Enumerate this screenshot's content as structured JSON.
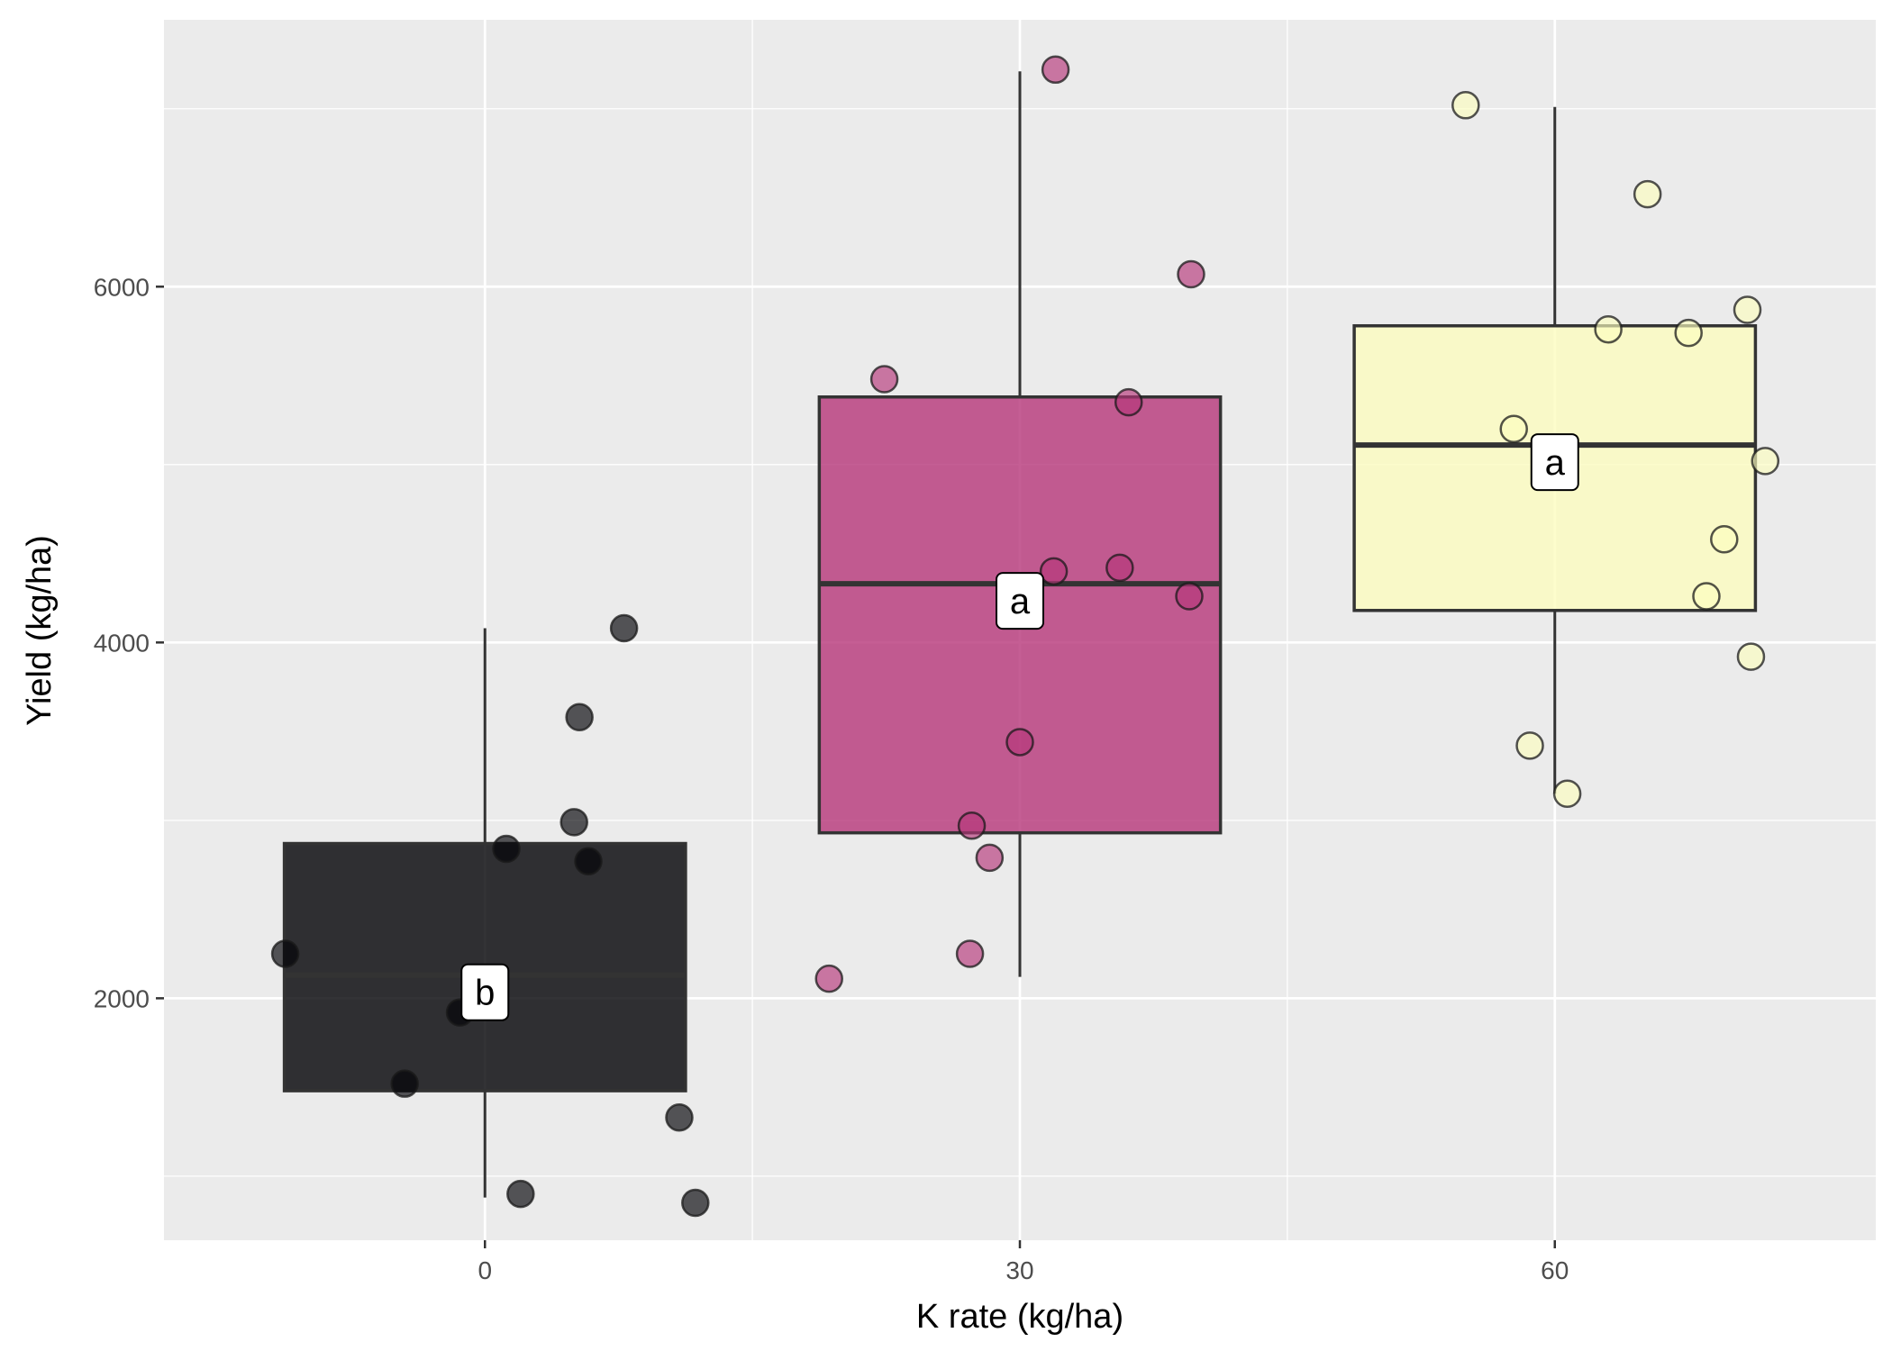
{
  "chart_data": {
    "type": "boxplot",
    "xlabel": "K rate (kg/ha)",
    "ylabel": "Yield (kg/ha)",
    "xlim": [
      -18,
      78
    ],
    "ylim": [
      640,
      7500
    ],
    "x_ticks": [
      0,
      30,
      60
    ],
    "y_ticks": [
      2000,
      4000,
      6000
    ],
    "grid": true,
    "legend": "none",
    "groups": [
      {
        "x": 0,
        "fill": "#000004",
        "letter": "b",
        "box": {
          "q1": 1480,
          "median": 2130,
          "q3": 2870,
          "whisker_low": 880,
          "whisker_high": 4080
        },
        "points": [
          {
            "x": -11.2,
            "y": 2250
          },
          {
            "x": -4.5,
            "y": 1520
          },
          {
            "x": -1.4,
            "y": 1920
          },
          {
            "x": 0.5,
            "y": 2010
          },
          {
            "x": 1.2,
            "y": 2840
          },
          {
            "x": 2.0,
            "y": 900
          },
          {
            "x": 5.0,
            "y": 2990
          },
          {
            "x": 5.3,
            "y": 3580
          },
          {
            "x": 5.8,
            "y": 2770
          },
          {
            "x": 7.8,
            "y": 4080
          },
          {
            "x": 10.9,
            "y": 1330
          },
          {
            "x": 11.8,
            "y": 850
          }
        ]
      },
      {
        "x": 30,
        "fill": "#B63679",
        "letter": "a",
        "box": {
          "q1": 2930,
          "median": 4330,
          "q3": 5380,
          "whisker_low": 2120,
          "whisker_high": 7210
        },
        "points": [
          {
            "x": 19.3,
            "y": 2110
          },
          {
            "x": 22.4,
            "y": 5480
          },
          {
            "x": 27.2,
            "y": 2250
          },
          {
            "x": 27.3,
            "y": 2970
          },
          {
            "x": 28.3,
            "y": 2790
          },
          {
            "x": 30.0,
            "y": 3440
          },
          {
            "x": 31.9,
            "y": 4400
          },
          {
            "x": 32.0,
            "y": 7220
          },
          {
            "x": 35.6,
            "y": 4420
          },
          {
            "x": 36.1,
            "y": 5350
          },
          {
            "x": 39.6,
            "y": 6070
          },
          {
            "x": 39.5,
            "y": 4260
          }
        ]
      },
      {
        "x": 60,
        "fill": "#FCFDBF",
        "letter": "a",
        "box": {
          "q1": 4180,
          "median": 5110,
          "q3": 5780,
          "whisker_low": 3150,
          "whisker_high": 7010
        },
        "points": [
          {
            "x": 55.0,
            "y": 7020
          },
          {
            "x": 57.7,
            "y": 5200
          },
          {
            "x": 58.6,
            "y": 3420
          },
          {
            "x": 60.7,
            "y": 3150
          },
          {
            "x": 63.0,
            "y": 5760
          },
          {
            "x": 65.2,
            "y": 6520
          },
          {
            "x": 67.5,
            "y": 5740
          },
          {
            "x": 68.5,
            "y": 4260
          },
          {
            "x": 69.5,
            "y": 4580
          },
          {
            "x": 70.8,
            "y": 5870
          },
          {
            "x": 71.0,
            "y": 3920
          },
          {
            "x": 71.8,
            "y": 5020
          }
        ]
      }
    ]
  }
}
